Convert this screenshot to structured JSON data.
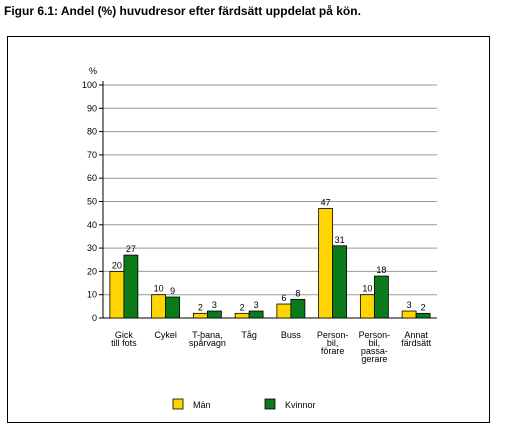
{
  "figure_title": "Figur 6.1: Andel (%) huvudresor efter färdsätt uppdelat på kön.",
  "colors": {
    "man": "#ffd400",
    "kvinnor": "#0a7a1a",
    "grid": "#9a9a9a",
    "axis": "#000000"
  },
  "chart_data": {
    "type": "bar",
    "ylabel": "%",
    "ylim": [
      0,
      100
    ],
    "yticks": [
      0,
      10,
      20,
      30,
      40,
      50,
      60,
      70,
      80,
      90,
      100
    ],
    "grid": true,
    "legend_position": "bottom",
    "categories": [
      [
        "Gick",
        "till fots"
      ],
      [
        "Cykel"
      ],
      [
        "T-bana,",
        "spårvagn"
      ],
      [
        "Tåg"
      ],
      [
        "Buss"
      ],
      [
        "Person-",
        "bil,",
        "förare"
      ],
      [
        "Person-",
        "bil,",
        "passa-",
        "gerare"
      ],
      [
        "Annat",
        "färdsätt"
      ]
    ],
    "series": [
      {
        "name": "Män",
        "color": "#ffd400",
        "values": [
          20,
          10,
          2,
          2,
          6,
          47,
          10,
          3
        ]
      },
      {
        "name": "Kvinnor",
        "color": "#0a7a1a",
        "values": [
          27,
          9,
          3,
          3,
          8,
          31,
          18,
          2
        ]
      }
    ]
  }
}
